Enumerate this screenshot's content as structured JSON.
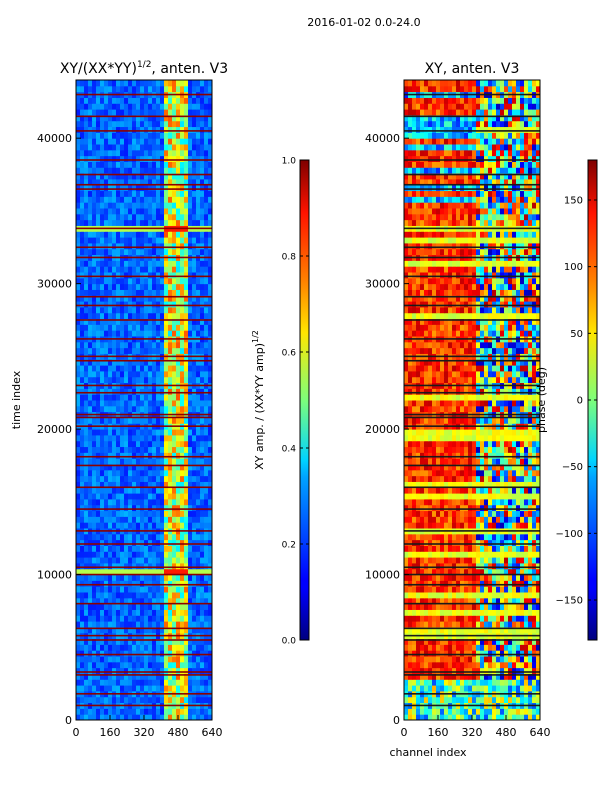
{
  "figure": {
    "suptitle": "2016-01-02 0.0-24.0"
  },
  "chart_data": [
    {
      "type": "heatmap",
      "title_main": "XY/(XX*YY)",
      "title_exp": "1/2",
      "title_tail": ", anten. V3",
      "xlabel": "",
      "ylabel": "time index",
      "xlim": [
        0,
        640
      ],
      "ylim": [
        0,
        44000
      ],
      "xticks": [
        0,
        160,
        320,
        480,
        640
      ],
      "yticks": [
        0,
        10000,
        20000,
        30000,
        40000
      ],
      "colorbar": {
        "label_main": "XY amp. / (XX*YY amp)",
        "label_exp": "1/2",
        "range": [
          0.0,
          1.0
        ],
        "ticks": [
          "0.0",
          "0.2",
          "0.4",
          "0.6",
          "0.8",
          "1.0"
        ],
        "tick_values": [
          0.0,
          0.2,
          0.4,
          0.6,
          0.8,
          1.0
        ],
        "colormap": "jet"
      },
      "flag_color": "#8b0000"
    },
    {
      "type": "heatmap",
      "title_main": "XY, anten. V3",
      "title_exp": "",
      "title_tail": "",
      "xlabel": "channel index",
      "ylabel": "",
      "xlim": [
        0,
        640
      ],
      "ylim": [
        0,
        44000
      ],
      "xticks": [
        0,
        160,
        320,
        480,
        640
      ],
      "yticks": [
        0,
        10000,
        20000,
        30000,
        40000
      ],
      "colorbar": {
        "label_main": "phase (deg)",
        "label_exp": "",
        "range": [
          -180,
          180
        ],
        "ticks": [
          "−150",
          "−100",
          "−50",
          "0",
          "50",
          "100",
          "150"
        ],
        "tick_values": [
          -150,
          -100,
          -50,
          0,
          50,
          100,
          150
        ],
        "colormap": "jet"
      },
      "flag_color": "#1a1a1a"
    }
  ],
  "flag_rows": [
    1000,
    1800,
    3100,
    3300,
    4500,
    5500,
    5800,
    6300,
    8000,
    9300,
    10000,
    10500,
    12100,
    13000,
    14500,
    16000,
    17500,
    18100,
    20200,
    20800,
    21000,
    22500,
    23000,
    24700,
    25000,
    26200,
    27500,
    28500,
    29100,
    30500,
    31800,
    32500,
    33800,
    36500,
    36800,
    37500,
    38500,
    40500,
    41500,
    43000
  ]
}
